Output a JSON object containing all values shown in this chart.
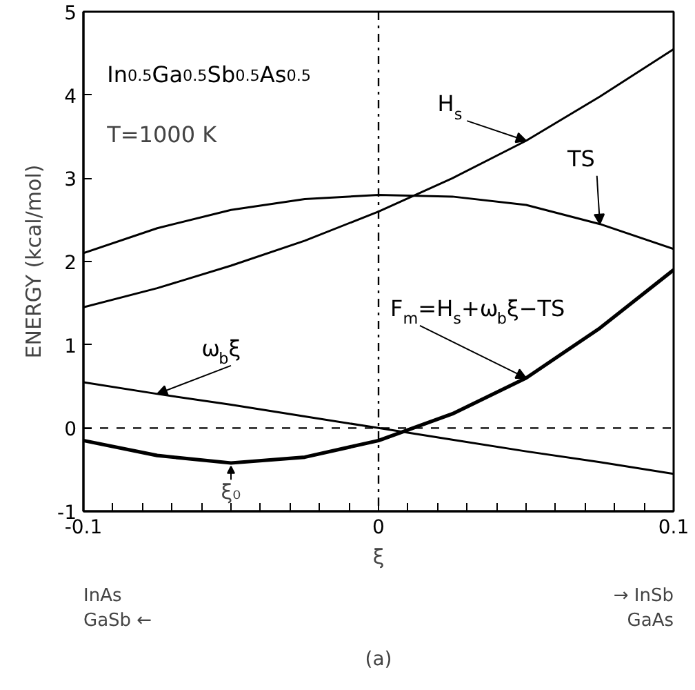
{
  "chart_data": {
    "type": "line",
    "xlabel": "ξ",
    "ylabel": "ENERGY (kcal/mol)",
    "x": [
      -0.1,
      -0.075,
      -0.05,
      -0.025,
      0,
      0.025,
      0.05,
      0.075,
      0.1
    ],
    "series": [
      {
        "name": "H$_{s}$",
        "color": "#000000",
        "values": [
          1.45,
          1.68,
          1.95,
          2.25,
          2.6,
          3.0,
          3.45,
          3.98,
          4.55
        ]
      },
      {
        "name": "TS",
        "color": "#000000",
        "values": [
          2.1,
          2.4,
          2.62,
          2.75,
          2.8,
          2.78,
          2.68,
          2.45,
          2.15
        ]
      },
      {
        "name": "F$_{m}$=H$_{s}$+ω$_{b}$ξ−TS",
        "color": "#000000",
        "values": [
          -0.15,
          -0.33,
          -0.42,
          -0.35,
          -0.15,
          0.17,
          0.6,
          1.2,
          1.9
        ]
      },
      {
        "name": "ω$_{b}$ξ",
        "color": "#000000",
        "values": [
          0.55,
          0.41,
          0.28,
          0.14,
          0,
          -0.14,
          -0.28,
          -0.41,
          -0.55
        ]
      }
    ],
    "xlim": [
      -0.1,
      0.1
    ],
    "ylim": [
      -1,
      5
    ],
    "xticks": [
      -0.1,
      {
        "value": -0.09,
        "label": null
      },
      {
        "value": -0.08,
        "label": null
      },
      {
        "value": -0.07,
        "label": null
      },
      {
        "value": -0.06,
        "label": null
      },
      {
        "value": -0.05,
        "label": null
      },
      {
        "value": -0.04,
        "label": null
      },
      {
        "value": -0.03,
        "label": null
      },
      {
        "value": -0.02,
        "label": null
      },
      {
        "value": -0.01,
        "label": null
      },
      0,
      {
        "value": 0.01,
        "label": null
      },
      {
        "value": 0.02,
        "label": null
      },
      {
        "value": 0.03,
        "label": null
      },
      {
        "value": 0.04,
        "label": null
      },
      {
        "value": 0.05,
        "label": null
      },
      {
        "value": 0.06,
        "label": null
      },
      {
        "value": 0.07,
        "label": null
      },
      {
        "value": 0.08,
        "label": null
      },
      {
        "value": 0.09,
        "label": null
      },
      0.1
    ],
    "yticks": [
      -1,
      0,
      1,
      2,
      3,
      4,
      5
    ],
    "ref_lines": [
      {
        "axis": "y",
        "value": 0,
        "line_style": "dashed"
      },
      {
        "axis": "x",
        "value": 0,
        "line_style": "dashdot"
      }
    ],
    "annotations": [
      "In$_{0.5}$Ga$_{0.5}$Sb$_{0.5}$As$_{0.5}$",
      "T=1000 K",
      {
        "text": "ξ₀",
        "x": -0.05,
        "y": -0.42
      },
      "InAs\nGaSb ←",
      "→ InSb\nGaAs",
      "(a)"
    ],
    "grid": false,
    "marker": "none",
    "line_style": "solid"
  }
}
